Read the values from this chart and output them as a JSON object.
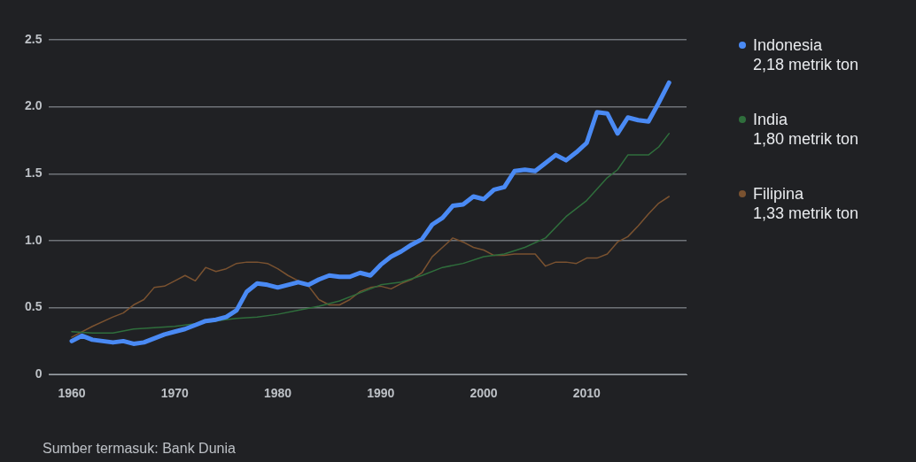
{
  "chart_data": {
    "type": "line",
    "xlim": [
      1957.8,
      2019.7
    ],
    "xticks": [
      1960,
      1970,
      1980,
      1990,
      2000,
      2010
    ],
    "ylim": [
      0,
      2.5
    ],
    "yticks": [
      0,
      {
        "value": 0.5,
        "label": "0.5"
      },
      {
        "value": 1,
        "label": "1.0"
      },
      {
        "value": 1.5,
        "label": "1.5"
      },
      {
        "value": 2,
        "label": "2.0"
      },
      {
        "value": 2.5,
        "label": "2.5"
      }
    ],
    "grid": "y",
    "legend": "right",
    "marker": "none",
    "line_style": "solid",
    "annotations": [
      "2,18 metrik ton",
      "1,80 metrik ton",
      "1,33 metrik ton",
      "Sumber termasuk: Bank Dunia"
    ],
    "series": [
      {
        "name": "Indonesia",
        "color": "#4a8af4",
        "x": [
          1960,
          1961,
          1962,
          1963,
          1964,
          1965,
          1966,
          1967,
          1968,
          1969,
          1970,
          1971,
          1972,
          1973,
          1974,
          1975,
          1976,
          1977,
          1978,
          1979,
          1980,
          1981,
          1982,
          1983,
          1984,
          1985,
          1986,
          1987,
          1988,
          1989,
          1990,
          1991,
          1992,
          1993,
          1994,
          1995,
          1996,
          1997,
          1998,
          1999,
          2000,
          2001,
          2002,
          2003,
          2004,
          2005,
          2006,
          2007,
          2008,
          2009,
          2010,
          2011,
          2012,
          2013,
          2014,
          2015,
          2016,
          2017,
          2018
        ],
        "values": [
          0.25,
          0.29,
          0.26,
          0.25,
          0.24,
          0.25,
          0.23,
          0.24,
          0.27,
          0.3,
          0.32,
          0.34,
          0.37,
          0.4,
          0.41,
          0.43,
          0.48,
          0.62,
          0.68,
          0.67,
          0.65,
          0.67,
          0.69,
          0.67,
          0.71,
          0.74,
          0.73,
          0.73,
          0.76,
          0.74,
          0.82,
          0.88,
          0.92,
          0.97,
          1.01,
          1.12,
          1.17,
          1.26,
          1.27,
          1.33,
          1.31,
          1.38,
          1.4,
          1.52,
          1.53,
          1.52,
          1.58,
          1.64,
          1.6,
          1.66,
          1.73,
          1.96,
          1.95,
          1.8,
          1.92,
          1.9,
          1.89,
          2.03,
          2.18
        ]
      },
      {
        "name": "India",
        "color": "#2f6e3c",
        "x": [
          1960,
          1962,
          1964,
          1966,
          1968,
          1970,
          1972,
          1974,
          1976,
          1978,
          1980,
          1982,
          1984,
          1986,
          1988,
          1990,
          1992,
          1994,
          1996,
          1998,
          2000,
          2002,
          2004,
          2006,
          2008,
          2010,
          2012,
          2013,
          2014,
          2015,
          2016,
          2017,
          2018
        ],
        "values": [
          0.32,
          0.31,
          0.31,
          0.34,
          0.35,
          0.36,
          0.38,
          0.4,
          0.42,
          0.43,
          0.45,
          0.48,
          0.51,
          0.55,
          0.61,
          0.67,
          0.69,
          0.74,
          0.8,
          0.83,
          0.88,
          0.9,
          0.95,
          1.02,
          1.18,
          1.3,
          1.47,
          1.53,
          1.64,
          1.64,
          1.64,
          1.7,
          1.8
        ]
      },
      {
        "name": "Filipina",
        "color": "#7a5230",
        "x": [
          1960,
          1962,
          1964,
          1965,
          1966,
          1967,
          1968,
          1969,
          1970,
          1971,
          1972,
          1973,
          1974,
          1975,
          1976,
          1977,
          1978,
          1979,
          1980,
          1981,
          1982,
          1983,
          1984,
          1985,
          1986,
          1987,
          1988,
          1989,
          1990,
          1991,
          1992,
          1993,
          1994,
          1995,
          1996,
          1997,
          1998,
          1999,
          2000,
          2001,
          2002,
          2003,
          2004,
          2005,
          2006,
          2007,
          2008,
          2009,
          2010,
          2011,
          2012,
          2013,
          2014,
          2015,
          2016,
          2017,
          2018
        ],
        "values": [
          0.28,
          0.36,
          0.43,
          0.46,
          0.52,
          0.56,
          0.65,
          0.66,
          0.7,
          0.74,
          0.7,
          0.8,
          0.77,
          0.79,
          0.83,
          0.84,
          0.84,
          0.83,
          0.79,
          0.74,
          0.7,
          0.66,
          0.56,
          0.52,
          0.52,
          0.56,
          0.62,
          0.65,
          0.66,
          0.64,
          0.68,
          0.71,
          0.76,
          0.88,
          0.95,
          1.02,
          0.99,
          0.95,
          0.93,
          0.89,
          0.89,
          0.9,
          0.9,
          0.9,
          0.81,
          0.84,
          0.84,
          0.83,
          0.87,
          0.87,
          0.9,
          0.99,
          1.03,
          1.11,
          1.2,
          1.28,
          1.33
        ]
      }
    ]
  }
}
